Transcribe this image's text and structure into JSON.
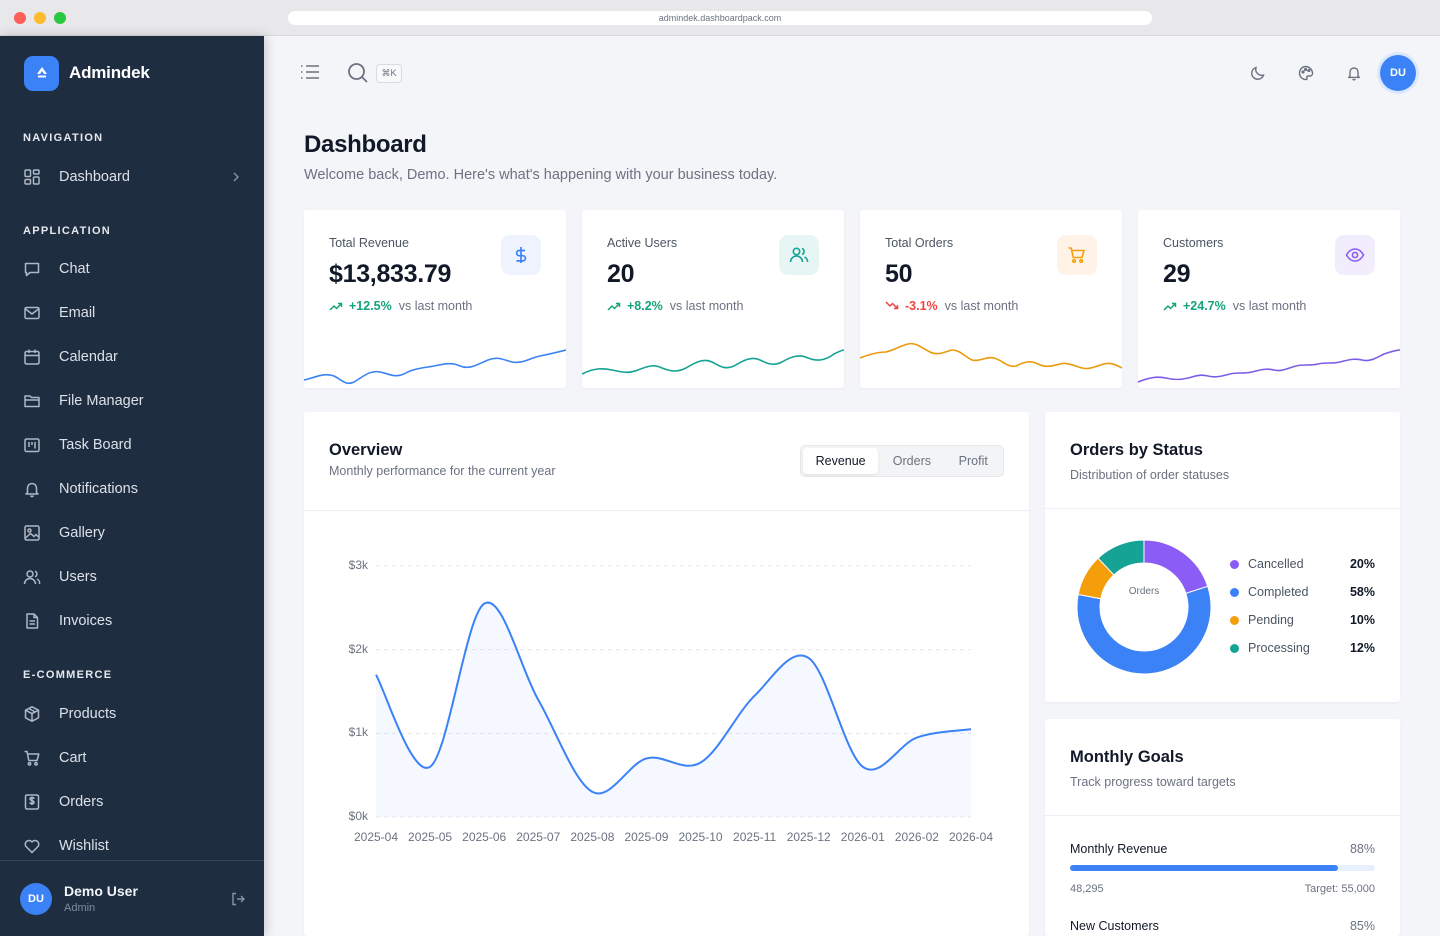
{
  "browser": {
    "url": "admindek.dashboardpack.com"
  },
  "brand": {
    "name": "Admindek"
  },
  "sidebar": {
    "sections": [
      {
        "title": "NAVIGATION",
        "items": [
          {
            "label": "Dashboard",
            "icon": "grid-icon"
          }
        ]
      },
      {
        "title": "APPLICATION",
        "items": [
          {
            "label": "Chat",
            "icon": "chat-icon"
          },
          {
            "label": "Email",
            "icon": "mail-icon"
          },
          {
            "label": "Calendar",
            "icon": "calendar-icon"
          },
          {
            "label": "File Manager",
            "icon": "folder-icon"
          },
          {
            "label": "Task Board",
            "icon": "kanban-icon"
          },
          {
            "label": "Notifications",
            "icon": "bell-icon"
          },
          {
            "label": "Gallery",
            "icon": "image-icon"
          },
          {
            "label": "Users",
            "icon": "users-icon"
          },
          {
            "label": "Invoices",
            "icon": "file-icon"
          }
        ]
      },
      {
        "title": "E-COMMERCE",
        "items": [
          {
            "label": "Products",
            "icon": "box-icon"
          },
          {
            "label": "Cart",
            "icon": "cart-icon"
          },
          {
            "label": "Orders",
            "icon": "receipt-icon"
          },
          {
            "label": "Wishlist",
            "icon": "heart-icon"
          }
        ]
      }
    ],
    "user": {
      "initials": "DU",
      "name": "Demo User",
      "role": "Admin"
    }
  },
  "topbar": {
    "shortcut": "⌘K",
    "avatar": "DU"
  },
  "page": {
    "title": "Dashboard",
    "subtitle": "Welcome back, Demo. Here's what's happening with your business today."
  },
  "stats": [
    {
      "label": "Total Revenue",
      "value": "$13,833.79",
      "change": "+12.5%",
      "note": "vs last month",
      "direction": "up",
      "icon": "dollar-icon",
      "color": "#3b82f6",
      "bg": "#eef3fe"
    },
    {
      "label": "Active Users",
      "value": "20",
      "change": "+8.2%",
      "note": "vs last month",
      "direction": "up",
      "icon": "users-icon",
      "color": "#14a394",
      "bg": "#e7f6f4"
    },
    {
      "label": "Total Orders",
      "value": "50",
      "change": "-3.1%",
      "note": "vs last month",
      "direction": "down",
      "icon": "cart-icon",
      "color": "#f59e0b",
      "bg": "#fef3e6"
    },
    {
      "label": "Customers",
      "value": "29",
      "change": "+24.7%",
      "note": "vs last month",
      "direction": "up",
      "icon": "eye-icon",
      "color": "#8b5cf6",
      "bg": "#f1edfd"
    }
  ],
  "overview": {
    "title": "Overview",
    "subtitle": "Monthly performance for the current year",
    "tabs": [
      "Revenue",
      "Orders",
      "Profit"
    ],
    "active_tab": "Revenue"
  },
  "chart_data": {
    "type": "area",
    "x": [
      "2025-04",
      "2025-05",
      "2025-06",
      "2025-07",
      "2025-08",
      "2025-09",
      "2025-10",
      "2025-11",
      "2025-12",
      "2026-01",
      "2026-02",
      "2026-04"
    ],
    "series": [
      {
        "values": [
          1700,
          600,
          2550,
          1400,
          300,
          700,
          650,
          1450,
          1900,
          600,
          950,
          1050
        ]
      }
    ],
    "yticks": [
      "$0k",
      "$1k",
      "$2k",
      "$3k"
    ],
    "ylim": [
      0,
      3000
    ],
    "grid": true,
    "color": "#3b82f6"
  },
  "orders_status": {
    "title": "Orders by Status",
    "subtitle": "Distribution of order statuses",
    "center_label": "Orders",
    "segments": [
      {
        "label": "Cancelled",
        "value": 20,
        "display": "20%",
        "color": "#8b5cf6"
      },
      {
        "label": "Completed",
        "value": 58,
        "display": "58%",
        "color": "#3b82f6"
      },
      {
        "label": "Pending",
        "value": 10,
        "display": "10%",
        "color": "#f59e0b"
      },
      {
        "label": "Processing",
        "value": 12,
        "display": "12%",
        "color": "#14a394"
      }
    ]
  },
  "goals": {
    "title": "Monthly Goals",
    "subtitle": "Track progress toward targets",
    "items": [
      {
        "name": "Monthly Revenue",
        "pct_label": "88%",
        "progress": 0.88,
        "current": "48,295",
        "target": "Target: 55,000"
      },
      {
        "name": "New Customers",
        "pct_label": "85%",
        "progress": 0.85
      }
    ]
  }
}
